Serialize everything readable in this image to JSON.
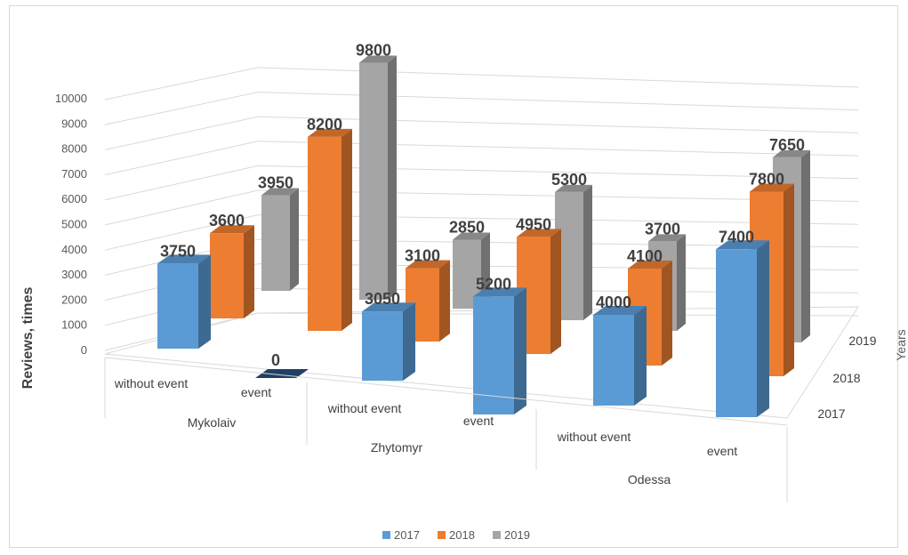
{
  "chart_data": {
    "type": "bar",
    "title": "",
    "ylabel": "Reviews, times",
    "zlabel": "Years",
    "ylim": [
      0,
      10000
    ],
    "yticks": [
      "0",
      "1000",
      "2000",
      "3000",
      "4000",
      "5000",
      "6000",
      "7000",
      "8000",
      "9000",
      "10000"
    ],
    "categories": [
      {
        "group": "Mykolaiv",
        "label": "without event"
      },
      {
        "group": "Mykolaiv",
        "label": "event"
      },
      {
        "group": "Zhytomyr",
        "label": "without event"
      },
      {
        "group": "Zhytomyr",
        "label": "event"
      },
      {
        "group": "Odessa",
        "label": "without event"
      },
      {
        "group": "Odessa",
        "label": "event"
      }
    ],
    "groups": [
      "Mykolaiv",
      "Zhytomyr",
      "Odessa"
    ],
    "depth_labels": [
      "2019",
      "2018",
      "2017"
    ],
    "series": [
      {
        "name": "2017",
        "color": "#5b9bd5",
        "values": [
          3750,
          0,
          3050,
          5200,
          4000,
          7400
        ],
        "labels": [
          "3750",
          "0",
          "3050",
          "5200",
          "4000",
          "7400"
        ]
      },
      {
        "name": "2018",
        "color": "#ed7d31",
        "values": [
          3600,
          8200,
          3100,
          4950,
          4100,
          7800
        ],
        "labels": [
          "3600",
          "8200",
          "3100",
          "4950",
          "4100",
          "7800"
        ]
      },
      {
        "name": "2019",
        "color": "#a5a5a5",
        "values": [
          3950,
          9800,
          2850,
          5300,
          3700,
          7650
        ],
        "labels": [
          "3950",
          "9800",
          "2850",
          "5300",
          "3700",
          "7650"
        ]
      }
    ],
    "legend_position": "bottom",
    "grid": true
  }
}
